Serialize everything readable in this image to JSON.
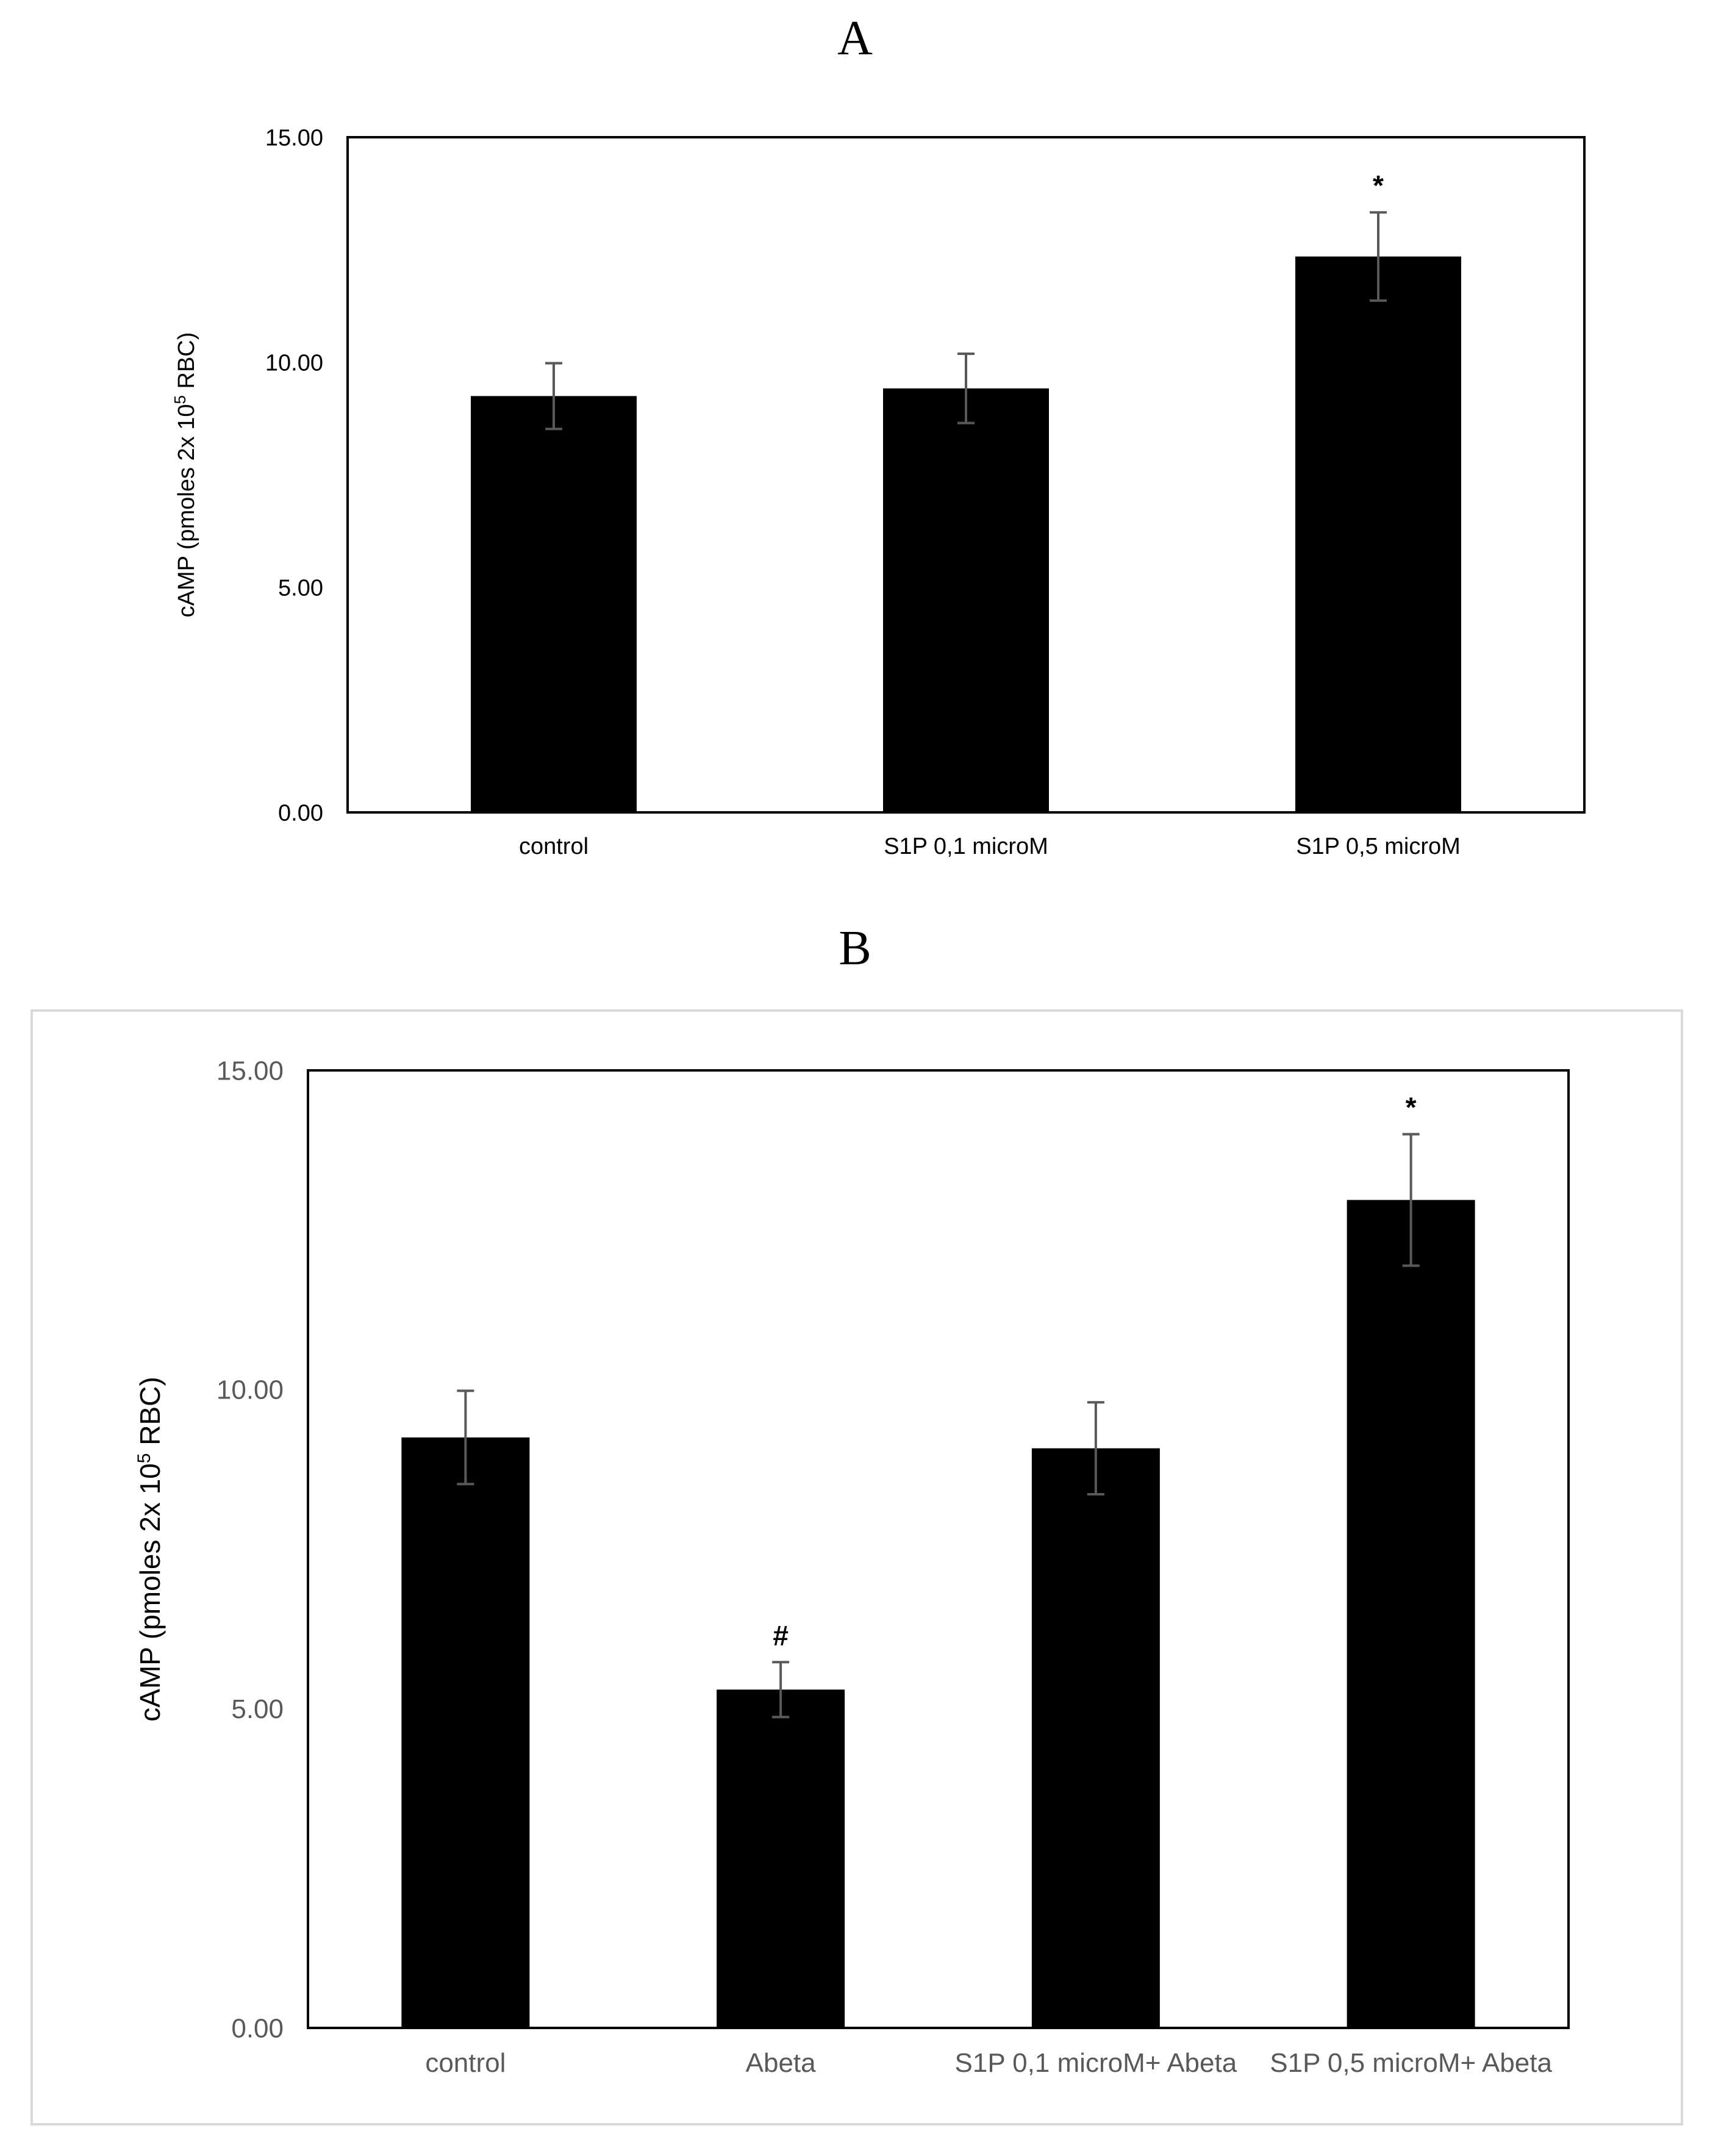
{
  "panels": [
    {
      "label": "A",
      "chart_data": {
        "type": "bar",
        "categories": [
          "control",
          "S1P 0,1 microM",
          "S1P 0,5 microM"
        ],
        "values": [
          9.25,
          9.42,
          12.35
        ],
        "errors": [
          0.73,
          0.77,
          0.98
        ],
        "annotations": [
          "",
          "",
          "*"
        ],
        "title": "",
        "xlabel": "",
        "ylabel_main": "cAMP (pmoles 2x 10",
        "ylabel_sup": "5",
        "ylabel_tail": " RBC)",
        "ylim": [
          0,
          15
        ],
        "yticks": [
          "0.00",
          "5.00",
          "10.00",
          "15.00"
        ],
        "bar_color": "#000000",
        "grid": false
      }
    },
    {
      "label": "B",
      "chart_data": {
        "type": "bar",
        "categories": [
          "control",
          "Abeta",
          "S1P 0,1 microM+ Abeta",
          "S1P 0,5 microM+ Abeta"
        ],
        "values": [
          9.25,
          5.3,
          9.08,
          12.97
        ],
        "errors": [
          0.73,
          0.43,
          0.72,
          1.03
        ],
        "annotations": [
          "",
          "#",
          "",
          "*"
        ],
        "title": "",
        "xlabel": "",
        "ylabel_main": "cAMP (pmoles 2x 10",
        "ylabel_sup": "5",
        "ylabel_tail": " RBC)",
        "ylim": [
          0,
          15
        ],
        "yticks": [
          "0.00",
          "5.00",
          "10.00",
          "15.00"
        ],
        "bar_color": "#000000",
        "grid": false
      }
    }
  ]
}
